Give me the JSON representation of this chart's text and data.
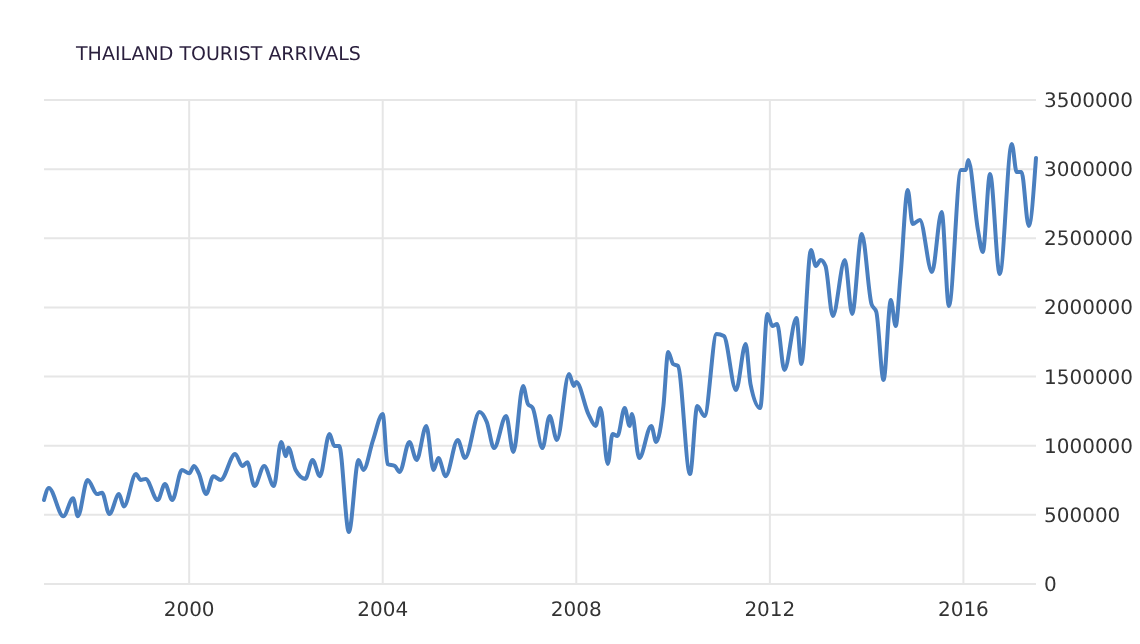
{
  "chart_data": {
    "type": "line",
    "title": "THAILAND TOURIST ARRIVALS",
    "x": [
      1997.0,
      1997.1,
      1997.4,
      1997.6,
      1997.7,
      1997.9,
      1998.1,
      1998.2,
      1998.35,
      1998.55,
      1998.65,
      1998.9,
      1999.0,
      1999.1,
      1999.35,
      1999.5,
      1999.65,
      1999.85,
      2000.0,
      2000.1,
      2000.2,
      2000.35,
      2000.5,
      2000.65,
      2000.95,
      2001.1,
      2001.2,
      2001.35,
      2001.55,
      2001.75,
      2001.9,
      2002.0,
      2002.05,
      2002.2,
      2002.4,
      2002.55,
      2002.7,
      2002.9,
      2003.0,
      2003.1,
      2003.3,
      2003.5,
      2003.6,
      2003.8,
      2004.0,
      2004.1,
      2004.25,
      2004.35,
      2004.55,
      2004.7,
      2004.9,
      2005.05,
      2005.15,
      2005.3,
      2005.55,
      2005.7,
      2006.0,
      2006.15,
      2006.3,
      2006.55,
      2006.7,
      2006.9,
      2007.0,
      2007.1,
      2007.3,
      2007.45,
      2007.6,
      2007.85,
      2007.95,
      2008.0,
      2008.25,
      2008.4,
      2008.5,
      2008.65,
      2008.75,
      2008.85,
      2009.0,
      2009.1,
      2009.15,
      2009.3,
      2009.55,
      2009.65,
      2009.8,
      2009.9,
      2010.0,
      2010.1,
      2010.35,
      2010.5,
      2010.65,
      2010.9,
      2011.05,
      2011.3,
      2011.5,
      2011.6,
      2011.8,
      2011.95,
      2012.05,
      2012.15,
      2012.3,
      2012.55,
      2012.65,
      2012.85,
      2012.95,
      2013.05,
      2013.15,
      2013.3,
      2013.55,
      2013.7,
      2013.9,
      2014.1,
      2014.2,
      2014.35,
      2014.5,
      2014.6,
      2014.7,
      2014.85,
      2014.95,
      2015.1,
      2015.35,
      2015.55,
      2015.7,
      2015.95,
      2016.05,
      2016.1,
      2016.3,
      2016.4,
      2016.55,
      2016.75,
      2017.0,
      2017.1,
      2017.2,
      2017.35,
      2017.5
    ],
    "series": [
      {
        "color": "#4a7fbf",
        "values": [
          607000,
          694000,
          490000,
          620000,
          490000,
          752000,
          650000,
          660000,
          506000,
          650000,
          560000,
          795000,
          752000,
          760000,
          607000,
          723000,
          607000,
          824000,
          800000,
          853000,
          800000,
          650000,
          780000,
          752000,
          940000,
          853000,
          880000,
          709000,
          853000,
          709000,
          1027000,
          925000,
          985000,
          824000,
          760000,
          897000,
          780000,
          1085000,
          998000,
          998000,
          376000,
          897000,
          824000,
          1041000,
          1229000,
          868000,
          853000,
          810000,
          1027000,
          897000,
          1143000,
          824000,
          911000,
          780000,
          1041000,
          911000,
          1244000,
          1171000,
          983000,
          1215000,
          955000,
          1432000,
          1302000,
          1273000,
          983000,
          1215000,
          1041000,
          1519000,
          1432000,
          1461000,
          1229000,
          1143000,
          1273000,
          868000,
          1085000,
          1070000,
          1273000,
          1143000,
          1229000,
          911000,
          1143000,
          1027000,
          1287000,
          1678000,
          1591000,
          1577000,
          795000,
          1287000,
          1215000,
          1808000,
          1793000,
          1403000,
          1736000,
          1446000,
          1273000,
          1953000,
          1866000,
          1880000,
          1548000,
          1924000,
          1591000,
          2415000,
          2300000,
          2343000,
          2300000,
          1938000,
          2343000,
          1953000,
          2531000,
          2025000,
          1967000,
          1475000,
          2054000,
          1866000,
          2227000,
          2849000,
          2603000,
          2633000,
          2256000,
          2690000,
          2010000,
          2994000,
          2994000,
          3066000,
          2560000,
          2401000,
          2965000,
          2242000,
          3182000,
          2979000,
          2979000,
          2589000,
          3081000
        ]
      }
    ],
    "xlim": [
      1997.0,
      2017.5
    ],
    "xticks": [
      2000,
      2004,
      2008,
      2012,
      2016
    ],
    "ylim": [
      0,
      3500000
    ],
    "yticks": [
      0,
      500000,
      1000000,
      1500000,
      2000000,
      2500000,
      3000000,
      3500000
    ],
    "grid": true,
    "line_style": "solid",
    "marker": "none"
  }
}
